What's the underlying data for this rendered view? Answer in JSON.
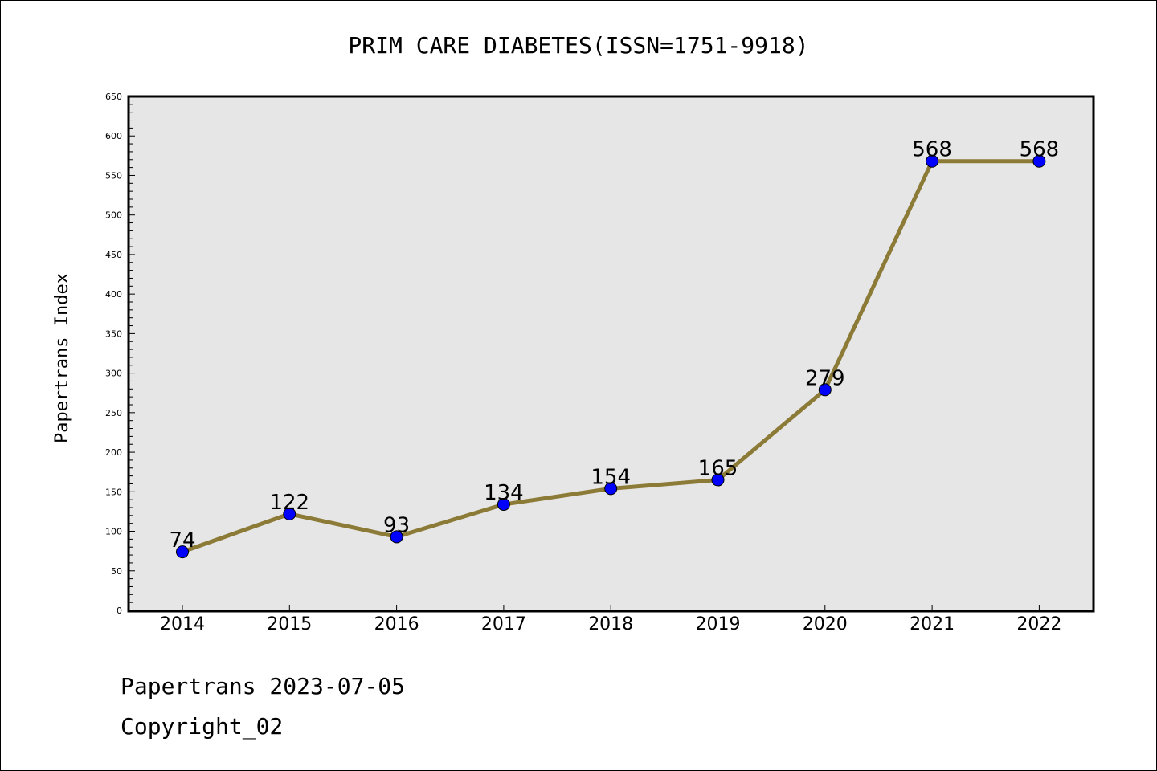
{
  "chart_data": {
    "type": "line",
    "title": "PRIM CARE DIABETES(ISSN=1751-9918)",
    "ylabel": "Papertrans Index",
    "xlabel": "",
    "categories": [
      "2014",
      "2015",
      "2016",
      "2017",
      "2018",
      "2019",
      "2020",
      "2021",
      "2022"
    ],
    "values": [
      74,
      122,
      93,
      134,
      154,
      165,
      279,
      568,
      568
    ],
    "ylim": [
      0,
      650
    ],
    "yticks": [
      0,
      50,
      100,
      150,
      200,
      250,
      300,
      350,
      400,
      450,
      500,
      550,
      600,
      650
    ],
    "grid": false,
    "line_color": "#8c7a37",
    "marker_color": "#0000ff",
    "plot_background": "#e6e6e6"
  },
  "footer": {
    "line1": "Papertrans 2023-07-05",
    "line2": "Copyright_02"
  }
}
